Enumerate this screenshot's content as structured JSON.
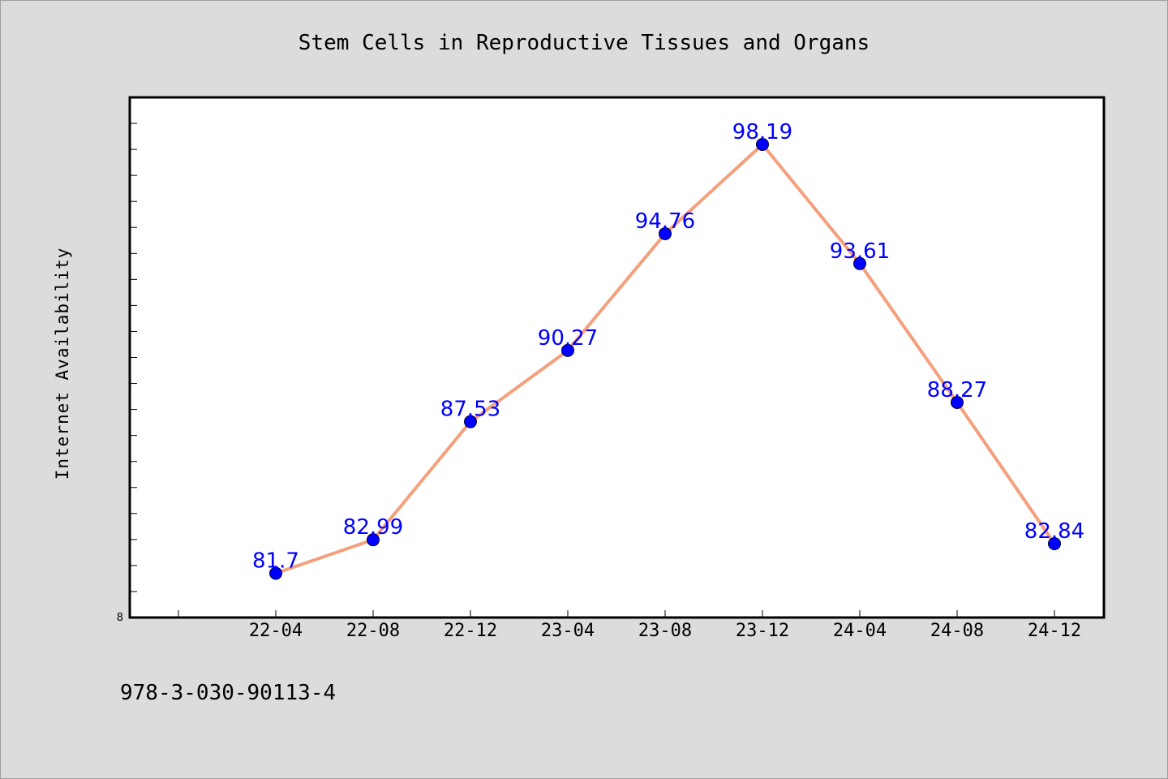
{
  "chart_data": {
    "type": "line",
    "title": "Stem Cells in Reproductive Tissues and Organs",
    "xlabel": "",
    "ylabel": "Internet Availability",
    "categories": [
      "22-04",
      "22-08",
      "22-12",
      "23-04",
      "23-08",
      "23-12",
      "24-04",
      "24-08",
      "24-12"
    ],
    "series": [
      {
        "values": [
          81.7,
          82.99,
          87.53,
          90.27,
          94.76,
          98.19,
          93.61,
          88.27,
          82.84
        ]
      }
    ],
    "data_labels": [
      "81.7",
      "82.99",
      "87.53",
      "90.27",
      "94.76",
      "98.19",
      "93.61",
      "88.27",
      "82.84"
    ],
    "ylim": [
      80,
      100
    ],
    "y_tick_label": "8",
    "y_minor_tick_step": 1,
    "grid": false,
    "legend": "none",
    "colors": {
      "line": "#f4a07c",
      "marker": "#0000ff",
      "label": "#0000ff",
      "background": "#dcdcdc",
      "plot_background": "#ffffff"
    }
  },
  "footer": {
    "text": "978-3-030-90113-4"
  }
}
